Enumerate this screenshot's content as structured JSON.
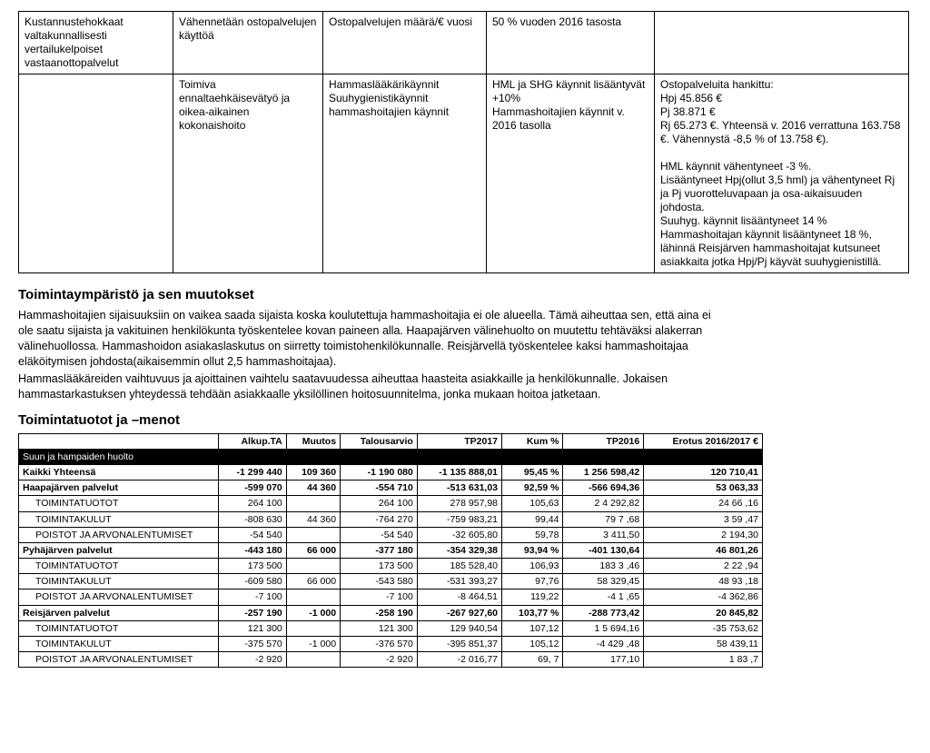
{
  "upper": {
    "headers": [
      "Kustannustehokkaat valtakunnallisesti vertailukelpoiset vastaanottopalvelut",
      "Vähennetään ostopalvelujen käyttöä",
      "Ostopalvelujen määrä/€ vuosi",
      "50 % vuoden 2016 tasosta",
      ""
    ],
    "row": [
      "",
      "Toimiva ennaltaehkäisevätyö ja oikea-aikainen kokonaishoito",
      "Hammaslääkärikäynnit\nSuuhygienistikäynnit\nhammashoitajien käynnit",
      "HML ja SHG käynnit lisääntyvät +10%\nHammashoitajien käynnit v. 2016 tasolla",
      "Ostopalveluita hankittu:\nHpj 45.856 €\nPj 38.871 €\nRj 65.273 €. Yhteensä v. 2016 verrattuna 163.758 €. Vähennystä -8,5 % of 13.758 €).\n\nHML käynnit vähentyneet -3 %.\nLisääntyneet Hpj(ollut 3,5 hml) ja vähentyneet Rj ja Pj vuorotteluvapaan ja osa-aikaisuuden johdosta.\nSuuhyg. käynnit lisääntyneet 14 %\nHammashoitajan käynnit lisääntyneet 18 %, lähinnä Reisjärven hammashoitajat kutsuneet asiakkaita jotka Hpj/Pj käyvät suuhygienistillä."
    ]
  },
  "sec1_title": "Toimintaympäristö ja sen muutokset",
  "sec1_paras": [
    "Hammashoitajien sijaisuuksiin on vaikea saada sijaista koska koulutettuja hammashoitajia ei ole alueella. Tämä aiheuttaa sen, että aina ei ole saatu sijaista ja vakituinen henkilökunta työskentelee kovan paineen alla. Haapajärven välinehuolto on muutettu tehtäväksi alakerran välinehuollossa. Hammashoidon asiakaslaskutus on siirretty toimistohenkilökunnalle. Reisjärvellä työskentelee kaksi hammashoitajaa eläköitymisen johdosta(aikaisemmin ollut 2,5 hammashoitajaa).",
    "Hammaslääkäreiden vaihtuvuus ja ajoittainen vaihtelu saatavuudessa aiheuttaa haasteita asiakkaille ja henkilökunnalle. Jokaisen hammastarkastuksen yhteydessä tehdään asiakkaalle yksilöllinen hoitosuunnitelma, jonka mukaan hoitoa jatketaan."
  ],
  "sec2_title": "Toimintatuotot ja –menot",
  "fin_columns": [
    "",
    "Alkup.TA",
    "Muutos",
    "Talousarvio",
    "TP2017",
    "Kum %",
    "TP2016",
    "Erotus 2016/2017 €"
  ],
  "fin_rows": [
    {
      "type": "header",
      "label": "Suun ja hampaiden huolto"
    },
    {
      "type": "bold",
      "label": "Kaikki Yhteensä",
      "cells": [
        "-1 299 440",
        "109 360",
        "-1 190 080",
        "-1 135 888,01",
        "95,45 %",
        "1 256 598,42",
        "120 710,41"
      ]
    },
    {
      "type": "group",
      "label": "Haapajärven palvelut",
      "cells": [
        "-599 070",
        "44 360",
        "-554 710",
        "-513 631,03",
        "92,59 %",
        "-566 694,36",
        "53 063,33"
      ]
    },
    {
      "type": "row",
      "indent": 1,
      "label": "TOIMINTATUOTOT",
      "cells": [
        "264 100",
        "",
        "264 100",
        "278 957,98",
        "105,63",
        "2 4 292,82",
        "24 66 ,16"
      ]
    },
    {
      "type": "row",
      "indent": 1,
      "label": "TOIMINTAKULUT",
      "cells": [
        "-808 630",
        "44 360",
        "-764 270",
        "-759 983,21",
        "99,44",
        "79  7 ,68",
        "3  59 ,47"
      ]
    },
    {
      "type": "row",
      "indent": 1,
      "label": "POISTOT JA ARVONALENTUMISET",
      "cells": [
        "-54 540",
        "",
        "-54 540",
        "-32 605,80",
        "59,78",
        "3  411,50",
        "2 194,30"
      ]
    },
    {
      "type": "group",
      "label": "Pyhäjärven palvelut",
      "cells": [
        "-443 180",
        "66 000",
        "-377 180",
        "-354 329,38",
        "93,94 %",
        "-401 130,64",
        "46 801,26"
      ]
    },
    {
      "type": "row",
      "indent": 1,
      "label": "TOIMINTATUOTOT",
      "cells": [
        "173 500",
        "",
        "173 500",
        "185 528,40",
        "106,93",
        "183 3 ,46",
        "2 22 ,94"
      ]
    },
    {
      "type": "row",
      "indent": 1,
      "label": "TOIMINTAKULUT",
      "cells": [
        "-609 580",
        "66 000",
        "-543 580",
        "-531 393,27",
        "97,76",
        "58  329,45",
        "48 93 ,18"
      ]
    },
    {
      "type": "row",
      "indent": 1,
      "label": "POISTOT JA ARVONALENTUMISET",
      "cells": [
        "-7 100",
        "",
        "-7 100",
        "-8 464,51",
        "119,22",
        "-4 1 ,65",
        "-4 362,86"
      ]
    },
    {
      "type": "group",
      "label": "Reisjärven palvelut",
      "cells": [
        "-257 190",
        "-1 000",
        "-258 190",
        "-267 927,60",
        "103,77 %",
        "-288 773,42",
        "20 845,82"
      ]
    },
    {
      "type": "row",
      "indent": 1,
      "label": "TOIMINTATUOTOT",
      "cells": [
        "121 300",
        "",
        "121 300",
        "129 940,54",
        "107,12",
        "1 5 694,16",
        "-35 753,62"
      ]
    },
    {
      "type": "row",
      "indent": 1,
      "label": "TOIMINTAKULUT",
      "cells": [
        "-375 570",
        "-1 000",
        "-376 570",
        "-395 851,37",
        "105,12",
        "-4  429 ,48",
        "58 439,11"
      ]
    },
    {
      "type": "row",
      "indent": 1,
      "label": "POISTOT JA ARVONALENTUMISET",
      "cells": [
        "-2 920",
        "",
        "-2 920",
        "-2 016,77",
        "69, 7",
        "177,10",
        "1 83  ,7"
      ]
    }
  ]
}
